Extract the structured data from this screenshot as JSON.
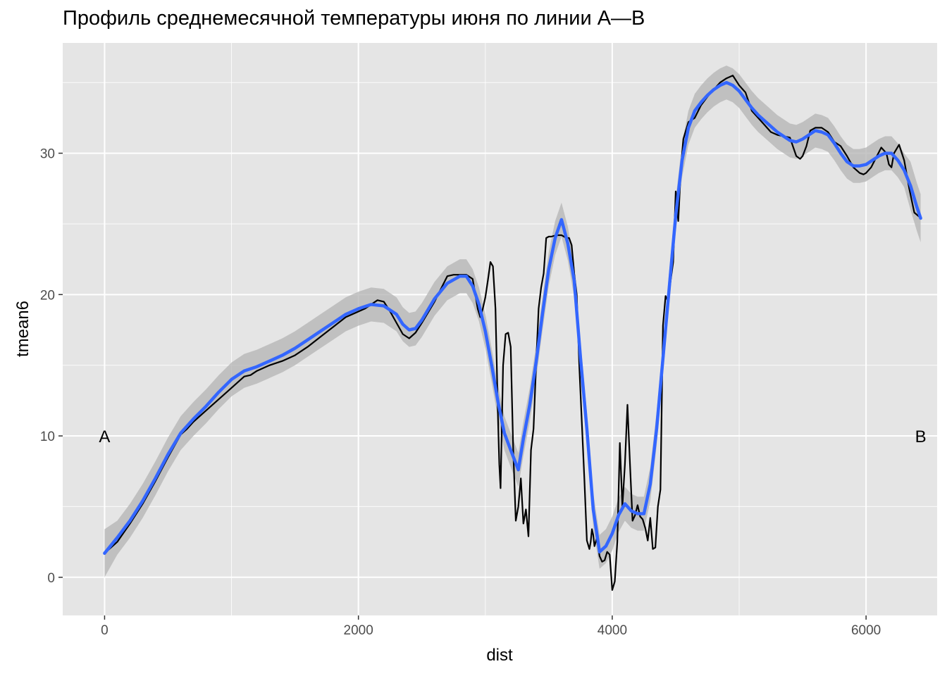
{
  "title": "Профиль среднемесячной температуры июня по линии A—B",
  "colors": {
    "panel": "#e5e5e5",
    "grid_major": "#ffffff",
    "raw_line": "#000000",
    "smooth_line": "#3366ff",
    "ribbon": "#b3b3b3"
  },
  "chart_data": {
    "type": "line",
    "title": "Профиль среднемесячной температуры июня по линии A—B",
    "xlabel": "dist",
    "ylabel": "tmean6",
    "xlim": [
      -330,
      6560
    ],
    "ylim": [
      -2.7,
      37.8
    ],
    "x_ticks": [
      0,
      2000,
      4000,
      6000
    ],
    "x_tick_labels": [
      "0",
      "2000",
      "4000",
      "6000"
    ],
    "y_ticks": [
      0,
      10,
      20,
      30
    ],
    "y_tick_labels": [
      "0",
      "10",
      "20",
      "30"
    ],
    "grid": true,
    "legend": "none",
    "annotations": [
      {
        "label": "A",
        "x": 0,
        "y": 10
      },
      {
        "label": "B",
        "x": 6430,
        "y": 10
      }
    ],
    "series": [
      {
        "kind": "raw",
        "x": [
          0,
          100,
          200,
          300,
          400,
          500,
          600,
          650,
          700,
          800,
          900,
          1000,
          1100,
          1150,
          1200,
          1300,
          1400,
          1500,
          1600,
          1700,
          1800,
          1900,
          2000,
          2050,
          2100,
          2150,
          2200,
          2250,
          2300,
          2350,
          2400,
          2450,
          2500,
          2600,
          2700,
          2750,
          2800,
          2850,
          2900,
          2940,
          2960,
          2980,
          3000,
          3020,
          3040,
          3060,
          3080,
          3100,
          3110,
          3120,
          3140,
          3160,
          3180,
          3200,
          3220,
          3240,
          3260,
          3280,
          3300,
          3320,
          3340,
          3360,
          3380,
          3400,
          3420,
          3440,
          3460,
          3480,
          3500,
          3520,
          3560,
          3600,
          3620,
          3640,
          3660,
          3680,
          3700,
          3720,
          3740,
          3760,
          3780,
          3800,
          3820,
          3830,
          3840,
          3850,
          3860,
          3870,
          3880,
          3900,
          3920,
          3940,
          3960,
          3980,
          4000,
          4020,
          4040,
          4060,
          4080,
          4100,
          4120,
          4140,
          4160,
          4180,
          4200,
          4220,
          4240,
          4260,
          4280,
          4300,
          4320,
          4340,
          4360,
          4380,
          4400,
          4420,
          4440,
          4460,
          4480,
          4500,
          4520,
          4540,
          4560,
          4600,
          4650,
          4700,
          4750,
          4800,
          4850,
          4900,
          4950,
          5000,
          5050,
          5100,
          5150,
          5200,
          5250,
          5300,
          5350,
          5400,
          5450,
          5480,
          5500,
          5530,
          5560,
          5600,
          5650,
          5700,
          5750,
          5800,
          5850,
          5900,
          5950,
          5980,
          6000,
          6040,
          6080,
          6120,
          6160,
          6180,
          6200,
          6220,
          6260,
          6300,
          6340,
          6380,
          6420
        ],
        "y": [
          1.7,
          2.5,
          3.8,
          5.2,
          6.8,
          8.5,
          10.1,
          10.5,
          11.0,
          11.8,
          12.6,
          13.4,
          14.2,
          14.3,
          14.6,
          15.0,
          15.3,
          15.7,
          16.3,
          17.0,
          17.7,
          18.4,
          18.8,
          19.0,
          19.3,
          19.6,
          19.5,
          18.8,
          18.0,
          17.2,
          16.9,
          17.3,
          18.0,
          19.5,
          21.3,
          21.4,
          21.4,
          21.4,
          21.1,
          19.0,
          18.4,
          19.0,
          19.8,
          21.0,
          22.3,
          22.0,
          19.0,
          11.2,
          8.0,
          6.3,
          15.0,
          17.2,
          17.3,
          16.3,
          9.0,
          4.0,
          5.0,
          7.0,
          3.8,
          4.8,
          2.9,
          9.0,
          10.5,
          15.0,
          19.0,
          20.5,
          21.5,
          24.0,
          24.1,
          24.1,
          24.2,
          24.2,
          24.1,
          24.0,
          24.0,
          23.5,
          21.5,
          20.0,
          15.0,
          11.0,
          7.0,
          2.6,
          2.0,
          2.5,
          3.4,
          3.0,
          2.2,
          2.5,
          2.8,
          1.5,
          1.1,
          1.2,
          1.8,
          1.6,
          -0.9,
          -0.3,
          2.5,
          9.5,
          5.0,
          8.0,
          12.2,
          8.0,
          4.0,
          4.4,
          5.1,
          4.3,
          4.1,
          3.5,
          2.6,
          4.2,
          2.0,
          2.1,
          5.0,
          6.2,
          17.8,
          19.9,
          19.5,
          21.0,
          22.3,
          27.3,
          25.2,
          28.8,
          31.0,
          32.2,
          32.5,
          33.4,
          34.0,
          34.5,
          35.0,
          35.3,
          35.5,
          34.8,
          34.3,
          33.0,
          32.5,
          32.0,
          31.5,
          31.3,
          31.2,
          31.1,
          29.8,
          29.6,
          29.8,
          30.5,
          31.6,
          31.8,
          31.8,
          31.5,
          30.8,
          30.5,
          29.8,
          29.0,
          28.6,
          28.5,
          28.6,
          29.0,
          29.7,
          30.4,
          30.0,
          29.2,
          29.0,
          30.0,
          30.6,
          29.5,
          27.5,
          25.8,
          25.5
        ]
      },
      {
        "kind": "smooth",
        "x": [
          0,
          100,
          200,
          300,
          400,
          500,
          600,
          700,
          800,
          900,
          1000,
          1100,
          1200,
          1300,
          1400,
          1500,
          1600,
          1700,
          1800,
          1900,
          2000,
          2100,
          2200,
          2300,
          2350,
          2400,
          2450,
          2500,
          2600,
          2700,
          2800,
          2850,
          2900,
          2950,
          3000,
          3050,
          3100,
          3150,
          3200,
          3260,
          3300,
          3350,
          3400,
          3450,
          3500,
          3550,
          3600,
          3650,
          3700,
          3750,
          3800,
          3850,
          3900,
          3950,
          4000,
          4050,
          4100,
          4150,
          4200,
          4250,
          4300,
          4350,
          4400,
          4450,
          4500,
          4550,
          4600,
          4650,
          4700,
          4750,
          4800,
          4850,
          4900,
          4950,
          5000,
          5050,
          5100,
          5150,
          5200,
          5250,
          5300,
          5350,
          5400,
          5450,
          5500,
          5550,
          5600,
          5650,
          5700,
          5750,
          5800,
          5850,
          5900,
          5950,
          6000,
          6050,
          6100,
          6150,
          6200,
          6250,
          6300,
          6350,
          6400,
          6430
        ],
        "y": [
          1.7,
          2.8,
          4.0,
          5.4,
          7.0,
          8.7,
          10.2,
          11.2,
          12.1,
          13.1,
          14.0,
          14.6,
          14.9,
          15.3,
          15.7,
          16.2,
          16.8,
          17.4,
          18.0,
          18.6,
          19.0,
          19.3,
          19.2,
          18.6,
          17.9,
          17.5,
          17.6,
          18.2,
          19.7,
          20.8,
          21.3,
          21.3,
          20.6,
          19.3,
          17.4,
          15.0,
          12.4,
          10.2,
          9.0,
          7.6,
          9.8,
          12.2,
          15.2,
          18.6,
          21.8,
          24.0,
          25.3,
          23.6,
          21.0,
          15.5,
          10.5,
          4.8,
          1.8,
          2.2,
          3.1,
          4.4,
          5.2,
          4.7,
          4.5,
          4.5,
          6.6,
          10.5,
          15.5,
          20.6,
          25.6,
          29.5,
          31.8,
          33.0,
          33.6,
          34.1,
          34.5,
          34.8,
          35.0,
          34.8,
          34.4,
          33.8,
          33.2,
          32.7,
          32.3,
          31.9,
          31.5,
          31.2,
          30.9,
          30.8,
          31.0,
          31.3,
          31.6,
          31.5,
          31.3,
          30.7,
          30.0,
          29.4,
          29.1,
          29.1,
          29.2,
          29.5,
          29.8,
          30.0,
          30.0,
          29.5,
          28.8,
          27.7,
          26.2,
          25.4
        ]
      }
    ]
  }
}
